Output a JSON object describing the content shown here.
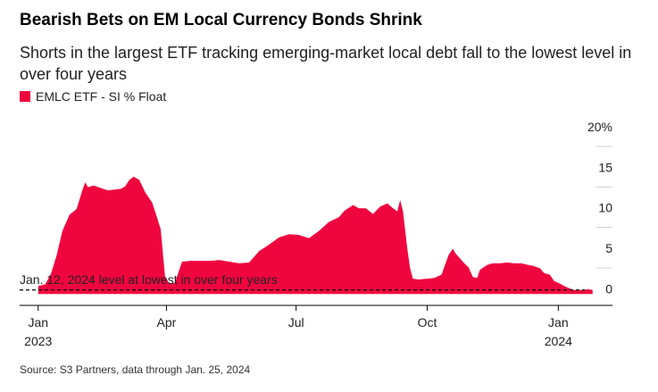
{
  "title": "Bearish Bets on EM Local Currency Bonds Shrink",
  "subtitle": "Shorts in the largest ETF tracking emerging-market local debt fall to the lowest level in over four years",
  "source": "Source: S3 Partners, data through Jan. 25, 2024",
  "colors": {
    "series": "#f0063f",
    "axis": "#000000",
    "grid": "#d0d0d0"
  },
  "chart_data": {
    "type": "area",
    "series": [
      {
        "name": "EMLC ETF - SI % Float",
        "x": [
          "2023-01-01",
          "2023-01-06",
          "2023-01-10",
          "2023-01-14",
          "2023-01-18",
          "2023-01-23",
          "2023-01-28",
          "2023-02-01",
          "2023-02-03",
          "2023-02-05",
          "2023-02-09",
          "2023-02-14",
          "2023-02-19",
          "2023-02-23",
          "2023-02-28",
          "2023-03-03",
          "2023-03-06",
          "2023-03-09",
          "2023-03-13",
          "2023-03-17",
          "2023-03-22",
          "2023-03-25",
          "2023-03-28",
          "2023-03-31",
          "2023-04-03",
          "2023-04-07",
          "2023-04-10",
          "2023-04-12",
          "2023-04-18",
          "2023-04-24",
          "2023-05-01",
          "2023-05-08",
          "2023-05-15",
          "2023-05-22",
          "2023-05-29",
          "2023-06-05",
          "2023-06-12",
          "2023-06-19",
          "2023-06-26",
          "2023-07-03",
          "2023-07-10",
          "2023-07-17",
          "2023-07-24",
          "2023-07-31",
          "2023-08-04",
          "2023-08-10",
          "2023-08-14",
          "2023-08-19",
          "2023-08-24",
          "2023-08-29",
          "2023-09-03",
          "2023-09-07",
          "2023-09-10",
          "2023-09-12",
          "2023-09-14",
          "2023-09-17",
          "2023-09-19",
          "2023-09-21",
          "2023-09-25",
          "2023-10-01",
          "2023-10-06",
          "2023-10-11",
          "2023-10-16",
          "2023-10-19",
          "2023-10-21",
          "2023-10-24",
          "2023-10-27",
          "2023-10-30",
          "2023-11-02",
          "2023-11-05",
          "2023-11-07",
          "2023-11-12",
          "2023-11-16",
          "2023-11-21",
          "2023-11-26",
          "2023-12-01",
          "2023-12-06",
          "2023-12-11",
          "2023-12-14",
          "2023-12-19",
          "2023-12-22",
          "2023-12-26",
          "2023-12-29",
          "2024-01-01",
          "2024-01-05",
          "2024-01-09",
          "2024-01-12",
          "2024-01-14",
          "2024-01-18",
          "2024-01-22",
          "2024-01-25"
        ],
        "values": [
          1.0,
          1.2,
          2.5,
          4.8,
          7.8,
          9.8,
          10.5,
          12.8,
          13.8,
          13.2,
          13.4,
          13.1,
          12.8,
          12.9,
          13.0,
          13.3,
          14.1,
          14.5,
          14.1,
          12.6,
          11.3,
          9.7,
          8.0,
          2.2,
          1.3,
          1.4,
          3.0,
          4.0,
          4.1,
          4.1,
          4.1,
          4.2,
          4.0,
          3.8,
          3.9,
          5.3,
          6.1,
          7.0,
          7.4,
          7.3,
          6.9,
          7.8,
          8.9,
          9.5,
          10.3,
          11.0,
          10.6,
          10.6,
          9.9,
          10.8,
          11.2,
          10.6,
          10.2,
          11.6,
          10.2,
          5.6,
          3.2,
          1.9,
          1.8,
          1.9,
          2.0,
          2.4,
          4.8,
          5.6,
          5.0,
          4.4,
          3.8,
          3.3,
          2.1,
          2.0,
          3.0,
          3.6,
          3.8,
          3.8,
          3.9,
          3.8,
          3.8,
          3.6,
          3.5,
          3.2,
          2.6,
          2.4,
          1.6,
          1.4,
          1.0,
          0.7,
          0.5,
          0.5,
          0.5,
          0.6,
          0.5
        ]
      }
    ],
    "x_ticks": [
      {
        "x": "2023-01-01",
        "label": "Jan",
        "sublabel": "2023"
      },
      {
        "x": "2023-04-01",
        "label": "Apr",
        "sublabel": ""
      },
      {
        "x": "2023-07-01",
        "label": "Jul",
        "sublabel": ""
      },
      {
        "x": "2023-10-01",
        "label": "Oct",
        "sublabel": ""
      },
      {
        "x": "2024-01-01",
        "label": "Jan",
        "sublabel": "2024"
      }
    ],
    "y_ticks": [
      {
        "value": 0,
        "label": "0"
      },
      {
        "value": 5,
        "label": "5"
      },
      {
        "value": 10,
        "label": "10"
      },
      {
        "value": 15,
        "label": "15"
      },
      {
        "value": 20,
        "label": "20%"
      }
    ],
    "ylim": [
      -1.4,
      20
    ],
    "xlim": [
      "2022-12-19",
      "2024-02-08"
    ],
    "grid": true,
    "legend_position": "top-left",
    "annotations": [
      {
        "text": "Jan. 12, 2024 level at lowest in over four years",
        "reference_value": 0.5,
        "style": "dashed-line"
      }
    ]
  }
}
